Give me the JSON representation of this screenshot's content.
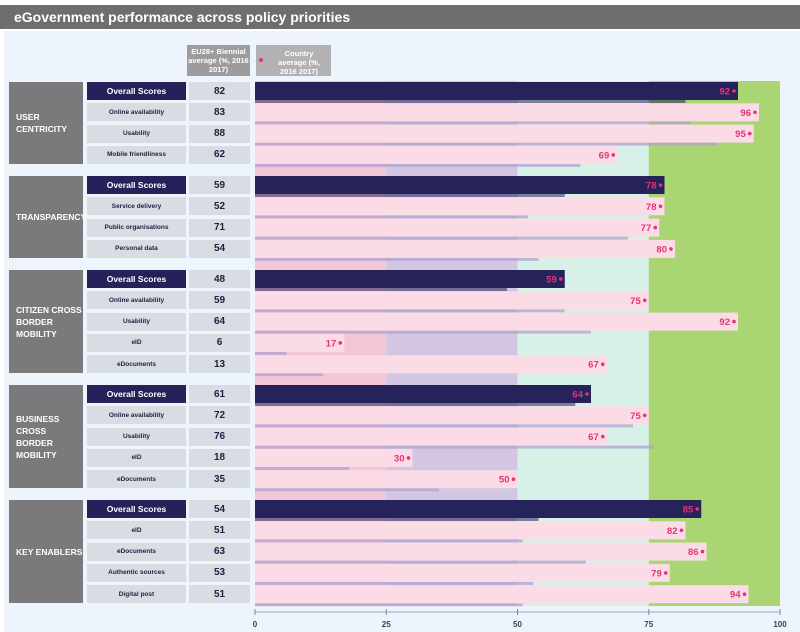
{
  "title": "eGovernment performance across policy priorities",
  "headers": {
    "eu_average": "EU28+ Biennial average (%, 2016 2017)",
    "country_average": "Country average (%, 2016 2017)"
  },
  "colors": {
    "band_0_25": "#f3c6d6",
    "band_25_50": "#d3c6e2",
    "band_50_75": "#d8f1e8",
    "band_75_100": "#a9d672",
    "bar_overall": "#26225a",
    "bar_indicator": "#fbdbe6",
    "marker": "#e8317a"
  },
  "chart_data": {
    "type": "bar",
    "orientation": "horizontal",
    "title": "eGovernment performance across policy priorities",
    "xlim": [
      0,
      100
    ],
    "xticks": [
      "0",
      "25",
      "50",
      "75",
      "100"
    ],
    "series_names": [
      "EU28+ Biennial average (%, 2016 2017)",
      "Country average (%, 2016 2017)"
    ],
    "groups": [
      {
        "name": "USER CENTRICITY",
        "rows": [
          {
            "label": "Overall Scores",
            "overall": true,
            "eu_avg": 82,
            "country": 92
          },
          {
            "label": "Online availability",
            "overall": false,
            "eu_avg": 83,
            "country": 96
          },
          {
            "label": "Usability",
            "overall": false,
            "eu_avg": 88,
            "country": 95
          },
          {
            "label": "Mobile friendliness",
            "overall": false,
            "eu_avg": 62,
            "country": 69
          }
        ]
      },
      {
        "name": "TRANSPARENCY",
        "rows": [
          {
            "label": "Overall Scores",
            "overall": true,
            "eu_avg": 59,
            "country": 78
          },
          {
            "label": "Service delivery",
            "overall": false,
            "eu_avg": 52,
            "country": 78
          },
          {
            "label": "Public organisations",
            "overall": false,
            "eu_avg": 71,
            "country": 77
          },
          {
            "label": "Personal data",
            "overall": false,
            "eu_avg": 54,
            "country": 80
          }
        ]
      },
      {
        "name": "CITIZEN CROSS BORDER MOBILITY",
        "rows": [
          {
            "label": "Overall Scores",
            "overall": true,
            "eu_avg": 48,
            "country": 59
          },
          {
            "label": "Online availability",
            "overall": false,
            "eu_avg": 59,
            "country": 75
          },
          {
            "label": "Usability",
            "overall": false,
            "eu_avg": 64,
            "country": 92
          },
          {
            "label": "eID",
            "overall": false,
            "eu_avg": 6,
            "country": 17
          },
          {
            "label": "eDocuments",
            "overall": false,
            "eu_avg": 13,
            "country": 67
          }
        ]
      },
      {
        "name": "BUSINESS CROSS BORDER MOBILITY",
        "rows": [
          {
            "label": "Overall Scores",
            "overall": true,
            "eu_avg": 61,
            "country": 64
          },
          {
            "label": "Online availability",
            "overall": false,
            "eu_avg": 72,
            "country": 75
          },
          {
            "label": "Usability",
            "overall": false,
            "eu_avg": 76,
            "country": 67
          },
          {
            "label": "eID",
            "overall": false,
            "eu_avg": 18,
            "country": 30
          },
          {
            "label": "eDocuments",
            "overall": false,
            "eu_avg": 35,
            "country": 50
          }
        ]
      },
      {
        "name": "KEY ENABLERS",
        "rows": [
          {
            "label": "Overall Scores",
            "overall": true,
            "eu_avg": 54,
            "country": 85
          },
          {
            "label": "eID",
            "overall": false,
            "eu_avg": 51,
            "country": 82
          },
          {
            "label": "eDocuments",
            "overall": false,
            "eu_avg": 63,
            "country": 86
          },
          {
            "label": "Authentic sources",
            "overall": false,
            "eu_avg": 53,
            "country": 79
          },
          {
            "label": "Digital post",
            "overall": false,
            "eu_avg": 51,
            "country": 94
          }
        ]
      }
    ]
  }
}
